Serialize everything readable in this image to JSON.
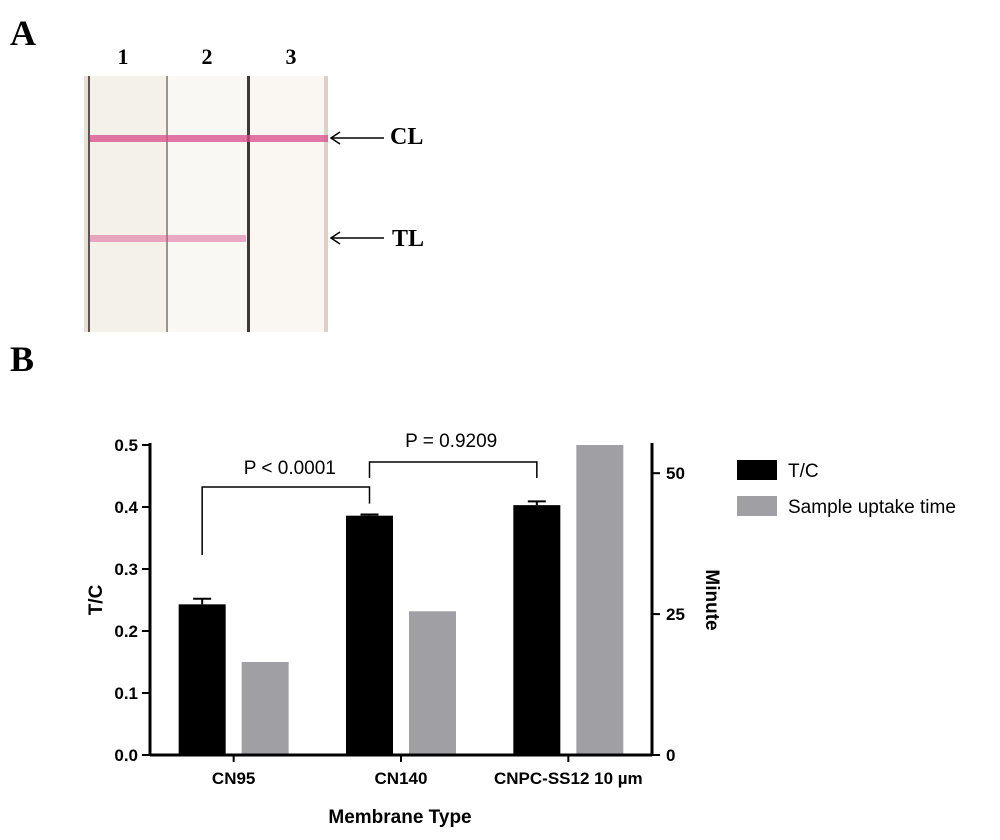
{
  "panels": {
    "a_label": "A",
    "b_label": "B"
  },
  "strip": {
    "lanes": [
      "1",
      "2",
      "3"
    ],
    "control_line_label": "CL",
    "test_line_label": "TL",
    "band_color": "#d84a8a"
  },
  "chart_data": {
    "type": "bar",
    "categories": [
      "CN95",
      "CN140",
      "CNPC-SS12 10 µm"
    ],
    "xlabel": "Membrane Type",
    "ylabel_left": "T/C",
    "ylabel_right": "Minute",
    "ylim_left": [
      0.0,
      0.5
    ],
    "yticks_left": [
      "0.0",
      "0.1",
      "0.2",
      "0.3",
      "0.4",
      "0.5"
    ],
    "ylim_right": [
      0,
      55
    ],
    "yticks_right": [
      "0",
      "25",
      "50"
    ],
    "legend_position": "right",
    "series": [
      {
        "name": "T/C",
        "axis": "left",
        "color": "#000000",
        "values": [
          0.243,
          0.386,
          0.403
        ],
        "errors": [
          0.009,
          0.002,
          0.006
        ]
      },
      {
        "name": "Sample uptake time",
        "axis": "right",
        "color": "#a0a0a4",
        "values": [
          16.5,
          25.5,
          55
        ]
      }
    ],
    "annotations": [
      {
        "text": "P < 0.0001",
        "between": [
          "CN95",
          "CN140"
        ]
      },
      {
        "text": "P = 0.9209",
        "between": [
          "CN140",
          "CNPC-SS12 10 µm"
        ]
      }
    ]
  }
}
